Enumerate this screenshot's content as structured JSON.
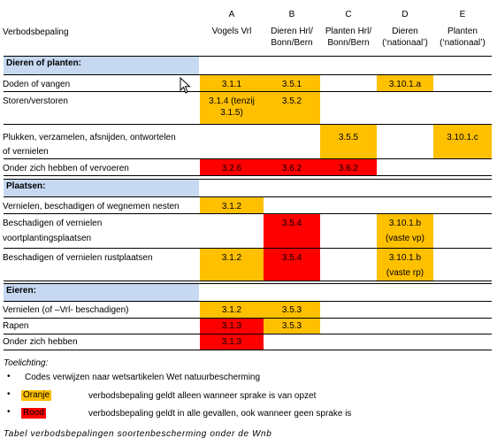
{
  "columns": [
    {
      "letter": "A",
      "line1": "Vogels Vrl",
      "line2": ""
    },
    {
      "letter": "B",
      "line1": "Dieren Hrl/",
      "line2": "Bonn/Bern"
    },
    {
      "letter": "C",
      "line1": "Planten Hrl/",
      "line2": "Bonn/Bern"
    },
    {
      "letter": "D",
      "line1": "Dieren",
      "line2": "(‘nationaal’)"
    },
    {
      "letter": "E",
      "line1": "Planten",
      "line2": "(‘nationaal’)"
    }
  ],
  "header_label": "Verbodsbepaling",
  "sections": {
    "s1": "Dieren of planten:",
    "s2": "Plaatsen:",
    "s3": "Eieren:"
  },
  "rows": {
    "r1": {
      "label": "Doden of vangen",
      "a": "3.1.1",
      "b": "3.5.1",
      "d": "3.10.1.a"
    },
    "r2": {
      "label": "Storen/verstoren",
      "a1": "3.1.4 (tenzij",
      "a2": "3.1.5)",
      "b": "3.5.2"
    },
    "r3": {
      "label1": "Plukken, verzamelen, afsnijden, ontwortelen",
      "label2": "of vernielen",
      "c": "3.5.5",
      "e": "3.10.1.c"
    },
    "r4": {
      "label": "Onder zich hebben of vervoeren",
      "a": "3.2.6",
      "b": "3.6.2",
      "c": "3.6.2"
    },
    "r5": {
      "label": "Vernielen, beschadigen of wegnemen nesten",
      "a": "3.1.2"
    },
    "r6": {
      "label1": "Beschadigen of vernielen",
      "label2": "voortplantingsplaatsen",
      "b": "3.5.4",
      "d1": "3.10.1.b",
      "d2": "(vaste vp)"
    },
    "r7": {
      "label": "Beschadigen of vernielen rustplaatsen",
      "a": "3.1.2",
      "b": "3.5.4",
      "d1": "3.10.1.b",
      "d2": "(vaste rp)"
    },
    "r8": {
      "label": "Vernielen (of –Vrl- beschadigen)",
      "a": "3.1.2",
      "b": "3.5.3"
    },
    "r9": {
      "label": "Rapen",
      "a": "3.1.3",
      "b": "3.5.3"
    },
    "r10": {
      "label": "Onder zich hebben",
      "a": "3.1.3"
    }
  },
  "legend": {
    "title": "Toelichting:",
    "item1": "Codes verwijzen naar wetsartikelen Wet natuurbescherming",
    "orange_label": "Oranje",
    "orange_text": "verbodsbepaling geldt alleen wanneer sprake is van opzet",
    "red_label": "Rood",
    "red_text": "verbodsbepaling geldt in alle gevallen, ook wanneer geen sprake is"
  },
  "caption": "Tabel verbodsbepalingen soortenbescherming onder de Wnb",
  "colors": {
    "orange": "#ffc000",
    "red": "#ff0000",
    "section": "#c6d9f1"
  },
  "icons": {
    "cursor": "mouse-pointer-icon",
    "bullet": "bullet-icon"
  }
}
